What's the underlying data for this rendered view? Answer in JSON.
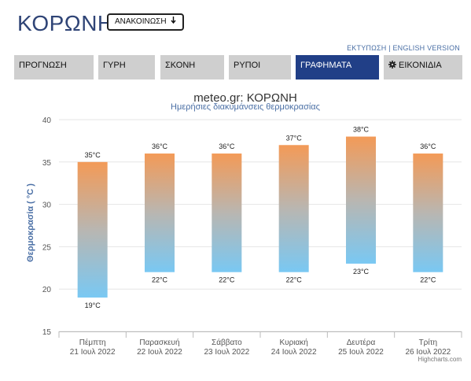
{
  "header": {
    "title": "ΚΟΡΩΝΗ",
    "announce_label": "ΑΝΑΚΟΙΝΩΣΗ",
    "announce_icon": "arrow-down-icon"
  },
  "links": {
    "print": "ΕΚΤΥΠΩΣΗ",
    "separator": "|",
    "english": "ENGLISH VERSION"
  },
  "tabs": [
    {
      "label": "ΠΡΟΓΝΩΣΗ",
      "active": false
    },
    {
      "label": "ΓΥΡΗ",
      "active": false
    },
    {
      "label": "ΣΚΟΝΗ",
      "active": false
    },
    {
      "label": "ΡΥΠΟΙ",
      "active": false
    },
    {
      "label": "ΓΡΑΦΗΜΑΤΑ",
      "active": true
    },
    {
      "label": "ΕΙΚΟΝΙΔΙΑ",
      "active": false,
      "icon": "gear-icon"
    }
  ],
  "colors": {
    "accent": "#213f87",
    "title": "#2f4476",
    "bar_top": "#f39a57",
    "bar_bottom": "#79c8f3",
    "grid": "#e6e6e6"
  },
  "chart_data": {
    "type": "columnrange",
    "title": "meteo.gr: ΚΟΡΩΝΗ",
    "subtitle": "Ημερήσιες διακυμάνσεις θερμοκρασίας",
    "ylabel": "Θερμοκρασία ( °C )",
    "ylim": [
      15,
      40
    ],
    "yticks": [
      15,
      20,
      25,
      30,
      35,
      40
    ],
    "grid": true,
    "categories": [
      [
        "Πέμπτη",
        "21 Ιουλ 2022"
      ],
      [
        "Παρασκευή",
        "22 Ιουλ 2022"
      ],
      [
        "Σάββατο",
        "23 Ιουλ 2022"
      ],
      [
        "Κυριακή",
        "24 Ιουλ 2022"
      ],
      [
        "Δευτέρα",
        "25 Ιουλ 2022"
      ],
      [
        "Τρίτη",
        "26 Ιουλ 2022"
      ]
    ],
    "low": [
      19,
      22,
      22,
      22,
      23,
      22
    ],
    "high": [
      35,
      36,
      36,
      37,
      38,
      36
    ],
    "unit": "°C",
    "credits": "Highcharts.com"
  }
}
